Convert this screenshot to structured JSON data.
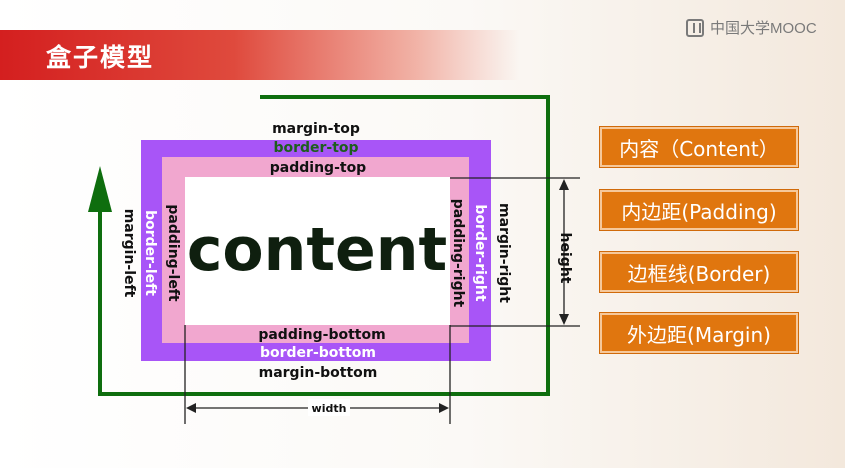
{
  "watermark": {
    "text": "中国大学MOOC"
  },
  "title": "盒子模型",
  "diagram": {
    "content_label": "content",
    "margin_top": "margin-top",
    "border_top": "border-top",
    "padding_top": "padding-top",
    "margin_left": "margin-left",
    "border_left": "border-left",
    "padding_left": "padding-left",
    "margin_right": "margin-right",
    "border_right": "border-right",
    "padding_right": "padding-right",
    "padding_bottom": "padding-bottom",
    "border_bottom": "border-bottom",
    "margin_bottom": "margin-bottom",
    "height_label": "height",
    "width_label": "width"
  },
  "legend": [
    {
      "label": "内容（Content）"
    },
    {
      "label": "内边距(Padding)"
    },
    {
      "label": "边框线(Border)"
    },
    {
      "label": "外边距(Margin)"
    }
  ],
  "colors": {
    "banner": "#d41f1f",
    "border": "#a855f7",
    "padding": "#f1a7cf",
    "margin_line": "#0e6e0e",
    "legend_box": "#e0760f"
  }
}
